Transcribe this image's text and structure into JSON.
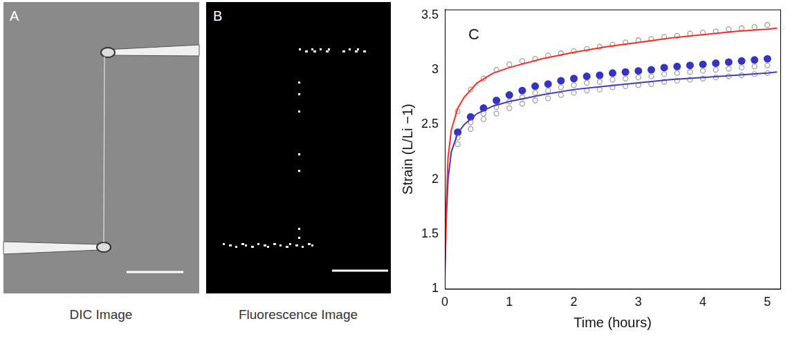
{
  "panels": [
    {
      "letter": "A",
      "caption": "DIC Image"
    },
    {
      "letter": "B",
      "caption": "Fluorescence Image"
    }
  ],
  "chart_data": {
    "type": "scatter",
    "panel_label": "C",
    "x_label": "Time (hours)",
    "y_label": "Strain (L/Li −1)",
    "xlim": [
      0,
      5.2
    ],
    "xticks": [
      0,
      1,
      2,
      3,
      4,
      5
    ],
    "ylim": [
      1,
      3.55
    ],
    "yticks": [
      1,
      1.5,
      2,
      2.5,
      3,
      3.5
    ],
    "grid": false,
    "series": [
      {
        "type": "line",
        "color": "#ff2a1a",
        "marker": "none",
        "line_style": "solid",
        "x": [
          0,
          0.02,
          0.05,
          0.1,
          0.2,
          0.3,
          0.5,
          0.75,
          1,
          1.5,
          2,
          2.5,
          3,
          3.5,
          4,
          4.5,
          5,
          5.15
        ],
        "values": [
          1.2,
          1.75,
          2.2,
          2.45,
          2.65,
          2.75,
          2.88,
          2.97,
          3.02,
          3.1,
          3.16,
          3.21,
          3.25,
          3.29,
          3.32,
          3.35,
          3.37,
          3.38
        ]
      },
      {
        "type": "line",
        "color": "#3b3bc4",
        "marker": "none",
        "line_style": "solid",
        "x": [
          0,
          0.02,
          0.05,
          0.1,
          0.2,
          0.3,
          0.5,
          0.75,
          1,
          1.5,
          2,
          2.5,
          3,
          3.5,
          4,
          4.5,
          5,
          5.15
        ],
        "values": [
          1.1,
          1.6,
          2.0,
          2.25,
          2.42,
          2.5,
          2.6,
          2.67,
          2.71,
          2.77,
          2.82,
          2.85,
          2.88,
          2.91,
          2.93,
          2.95,
          2.97,
          2.98
        ]
      },
      {
        "type": "scatter",
        "color": "#a0a0a0",
        "marker": "open_circle",
        "x": [
          0.2,
          0.4,
          0.6,
          0.8,
          1.0,
          1.2,
          1.4,
          1.6,
          1.8,
          2.0,
          2.2,
          2.4,
          2.6,
          2.8,
          3.0,
          3.2,
          3.4,
          3.6,
          3.8,
          4.0,
          4.2,
          4.4,
          4.6,
          4.8,
          5.0
        ],
        "values": [
          2.62,
          2.82,
          2.92,
          3.0,
          3.05,
          3.08,
          3.1,
          3.13,
          3.15,
          3.17,
          3.19,
          3.21,
          3.23,
          3.25,
          3.27,
          3.28,
          3.3,
          3.31,
          3.33,
          3.34,
          3.35,
          3.37,
          3.38,
          3.39,
          3.41
        ]
      },
      {
        "type": "scatter",
        "color": "#a0a0a0",
        "marker": "open_circle",
        "x": [
          0.2,
          0.4,
          0.6,
          0.8,
          1.0,
          1.2,
          1.4,
          1.6,
          1.8,
          2.0,
          2.2,
          2.4,
          2.6,
          2.8,
          3.0,
          3.2,
          3.4,
          3.6,
          3.8,
          4.0,
          4.2,
          4.4,
          4.6,
          4.8,
          5.0
        ],
        "values": [
          2.38,
          2.52,
          2.6,
          2.66,
          2.71,
          2.75,
          2.79,
          2.81,
          2.84,
          2.86,
          2.88,
          2.89,
          2.91,
          2.92,
          2.93,
          2.94,
          2.96,
          2.97,
          2.98,
          2.99,
          3.0,
          3.01,
          3.02,
          3.03,
          3.04
        ]
      },
      {
        "type": "scatter",
        "color": "#a0a0a0",
        "marker": "open_circle",
        "x": [
          0.2,
          0.4,
          0.6,
          0.8,
          1.0,
          1.2,
          1.4,
          1.6,
          1.8,
          2.0,
          2.2,
          2.4,
          2.6,
          2.8,
          3.0,
          3.2,
          3.4,
          3.6,
          3.8,
          4.0,
          4.2,
          4.4,
          4.6,
          4.8,
          5.0
        ],
        "values": [
          2.32,
          2.46,
          2.55,
          2.6,
          2.65,
          2.69,
          2.72,
          2.74,
          2.77,
          2.79,
          2.81,
          2.82,
          2.84,
          2.85,
          2.86,
          2.87,
          2.89,
          2.9,
          2.91,
          2.92,
          2.93,
          2.94,
          2.95,
          2.96,
          2.97
        ]
      },
      {
        "type": "scatter",
        "color": "#3434c0",
        "marker": "circle",
        "x": [
          0.2,
          0.4,
          0.6,
          0.8,
          1.0,
          1.2,
          1.4,
          1.6,
          1.8,
          2.0,
          2.2,
          2.4,
          2.6,
          2.8,
          3.0,
          3.2,
          3.4,
          3.6,
          3.8,
          4.0,
          4.2,
          4.4,
          4.6,
          4.8,
          5.0
        ],
        "values": [
          2.43,
          2.57,
          2.65,
          2.72,
          2.77,
          2.81,
          2.85,
          2.87,
          2.9,
          2.92,
          2.94,
          2.95,
          2.97,
          2.98,
          2.99,
          3.0,
          3.02,
          3.03,
          3.04,
          3.05,
          3.06,
          3.07,
          3.08,
          3.09,
          3.1
        ]
      }
    ]
  }
}
